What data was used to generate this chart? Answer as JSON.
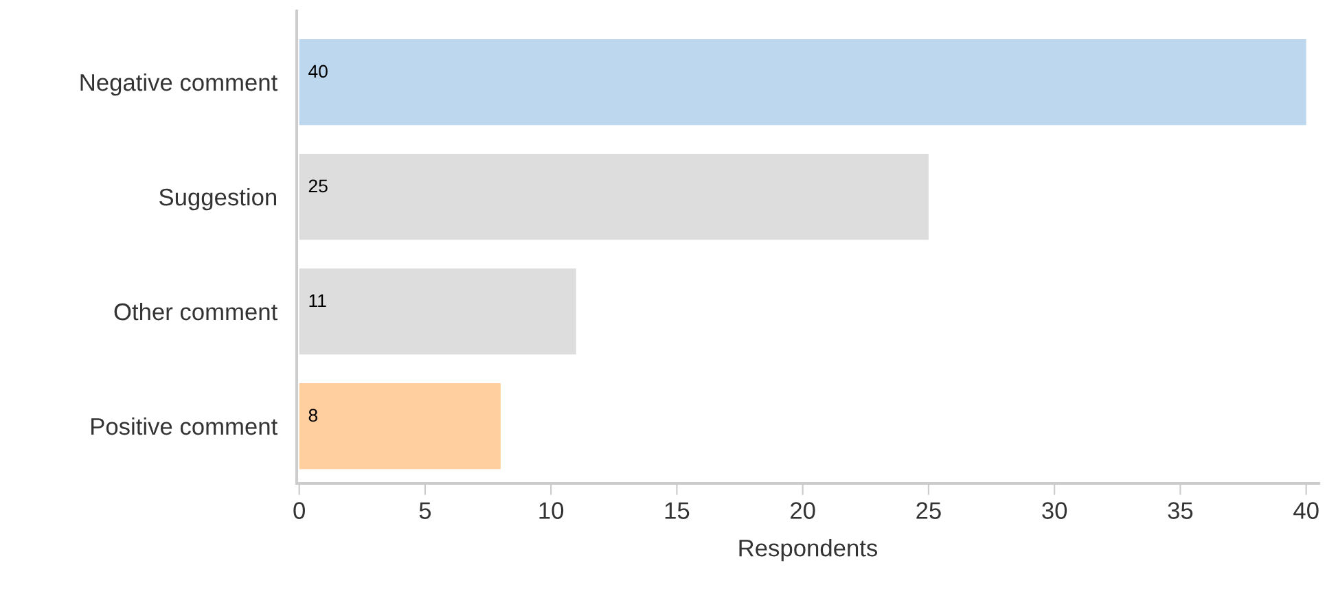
{
  "chart_data": {
    "type": "bar",
    "orientation": "horizontal",
    "xlabel": "Respondents",
    "categories": [
      "Negative comment",
      "Suggestion",
      "Other comment",
      "Positive comment"
    ],
    "values": [
      40,
      25,
      11,
      8
    ],
    "colors": [
      "#bdd7ee",
      "#dddddd",
      "#dddddd",
      "#ffcf9f"
    ],
    "xlim": [
      -0.1,
      40.5
    ],
    "xticks": [
      0,
      5,
      10,
      15,
      20,
      25,
      30,
      35,
      40
    ],
    "data_labels": true,
    "grid": false
  }
}
